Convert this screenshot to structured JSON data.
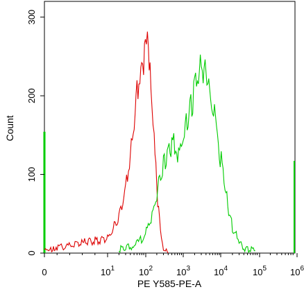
{
  "chart_data": {
    "type": "line",
    "title": "",
    "xlabel": "PE Y585-PE-A",
    "ylabel": "Count",
    "ylim": [
      0,
      320
    ],
    "x_scale": "biexponential (0 then decades 10^1 to 10^6)",
    "grid": false,
    "legend": "none",
    "x_ticks": [
      {
        "label": "0",
        "sup": ""
      },
      {
        "label": "10",
        "sup": "1"
      },
      {
        "label": "10",
        "sup": "2"
      },
      {
        "label": "10",
        "sup": "3"
      },
      {
        "label": "10",
        "sup": "4"
      },
      {
        "label": "10",
        "sup": "5"
      },
      {
        "label": "10",
        "sup": "6"
      }
    ],
    "y_ticks": [
      "0",
      "100",
      "200",
      "300"
    ],
    "series": [
      {
        "color": "#dd0000",
        "x": [
          0,
          1,
          2,
          3,
          5,
          10,
          20,
          30,
          45,
          60,
          80,
          100,
          120,
          140,
          170,
          200,
          250,
          300,
          400
        ],
        "y": [
          4,
          5,
          6,
          8,
          12,
          18,
          45,
          85,
          140,
          200,
          240,
          260,
          255,
          220,
          150,
          80,
          30,
          8,
          0
        ]
      },
      {
        "color": "#00cc00",
        "x": [
          20,
          40,
          70,
          100,
          150,
          200,
          300,
          500,
          800,
          1200,
          2000,
          3000,
          4000,
          5000,
          8000,
          12000,
          20000,
          40000,
          80000
        ],
        "y": [
          5,
          8,
          15,
          25,
          45,
          75,
          110,
          140,
          125,
          160,
          210,
          235,
          230,
          205,
          150,
          90,
          30,
          6,
          3
        ]
      }
    ]
  }
}
